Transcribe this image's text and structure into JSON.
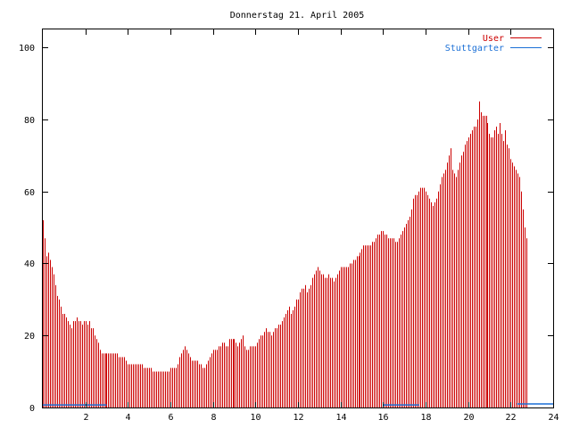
{
  "chart_data": {
    "type": "bar",
    "title": "Donnerstag 21. April 2005",
    "xlabel": "",
    "ylabel": "",
    "xlim": [
      0,
      24
    ],
    "ylim": [
      0,
      105
    ],
    "x_ticks": [
      "2",
      "4",
      "6",
      "8",
      "10",
      "12",
      "14",
      "16",
      "18",
      "20",
      "22",
      "24"
    ],
    "y_ticks": [
      "0",
      "20",
      "40",
      "60",
      "80",
      "100"
    ],
    "grid": false,
    "legend_position": "top-right",
    "colors": {
      "user": "#cc0000",
      "stuttgarter": "#1a6fd6",
      "axis": "#000000"
    },
    "series": [
      {
        "name": "User",
        "interval_hours": 0.08333,
        "values": [
          52,
          47,
          42,
          43,
          41,
          39,
          37,
          34,
          31,
          30,
          28,
          26,
          26,
          25,
          24,
          23,
          22,
          24,
          24,
          25,
          24,
          24,
          23,
          24,
          24,
          23,
          24,
          22,
          22,
          20,
          19,
          18,
          16,
          15,
          15,
          15,
          15,
          15,
          15,
          15,
          15,
          15,
          15,
          14,
          14,
          14,
          14,
          13,
          12,
          12,
          12,
          12,
          12,
          12,
          12,
          12,
          12,
          11,
          11,
          11,
          11,
          11,
          10,
          10,
          10,
          10,
          10,
          10,
          10,
          10,
          10,
          10,
          11,
          11,
          11,
          11,
          12,
          14,
          15,
          16,
          17,
          16,
          15,
          14,
          13,
          13,
          13,
          13,
          12,
          12,
          11,
          11,
          12,
          13,
          14,
          15,
          16,
          16,
          16,
          17,
          17,
          18,
          18,
          17,
          17,
          19,
          19,
          19,
          19,
          18,
          17,
          18,
          19,
          20,
          17,
          16,
          16,
          17,
          17,
          17,
          17,
          18,
          19,
          20,
          20,
          21,
          22,
          21,
          21,
          20,
          21,
          22,
          22,
          23,
          23,
          24,
          25,
          26,
          27,
          28,
          26,
          27,
          28,
          30,
          30,
          32,
          33,
          33,
          34,
          32,
          33,
          34,
          36,
          37,
          38,
          39,
          38,
          37,
          37,
          36,
          36,
          37,
          36,
          36,
          35,
          36,
          37,
          38,
          39,
          39,
          39,
          39,
          39,
          40,
          40,
          41,
          41,
          42,
          42,
          43,
          44,
          45,
          45,
          45,
          45,
          45,
          46,
          46,
          47,
          48,
          48,
          49,
          49,
          48,
          48,
          47,
          47,
          47,
          47,
          46,
          46,
          47,
          48,
          49,
          50,
          51,
          52,
          53,
          55,
          58,
          59,
          59,
          60,
          61,
          61,
          61,
          60,
          59,
          58,
          57,
          56,
          57,
          58,
          60,
          62,
          64,
          65,
          66,
          68,
          70,
          72,
          66,
          65,
          64,
          66,
          68,
          70,
          71,
          73,
          74,
          75,
          76,
          77,
          78,
          78,
          80,
          85,
          82,
          81,
          81,
          81,
          79,
          76,
          75,
          75,
          77,
          78,
          76,
          79,
          76,
          74,
          77,
          73,
          72,
          69,
          68,
          67,
          66,
          65,
          64,
          60,
          55,
          50,
          47
        ]
      },
      {
        "name": "Stuttgarter",
        "segments": [
          {
            "x0": 0.0,
            "x1": 3.0,
            "value": 0.7
          },
          {
            "x0": 16.0,
            "x1": 17.7,
            "value": 0.7
          },
          {
            "x0": 22.3,
            "x1": 24.0,
            "value": 1.0
          }
        ]
      }
    ]
  }
}
